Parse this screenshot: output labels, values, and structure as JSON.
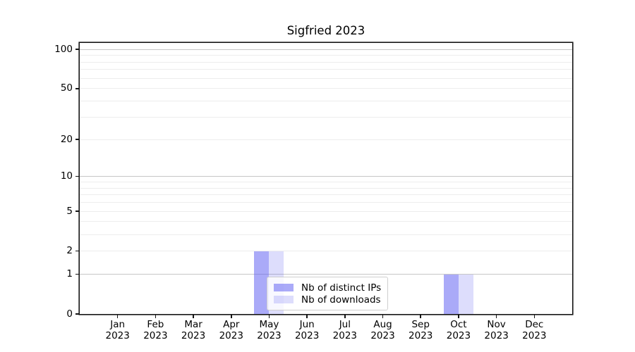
{
  "title": "Sigfried 2023",
  "chart_data": {
    "type": "bar",
    "title": "Sigfried 2023",
    "categories": [
      "Jan 2023",
      "Feb 2023",
      "Mar 2023",
      "Apr 2023",
      "May 2023",
      "Jun 2023",
      "Jul 2023",
      "Aug 2023",
      "Sep 2023",
      "Oct 2023",
      "Nov 2023",
      "Dec 2023"
    ],
    "series": [
      {
        "name": "Nb of distinct IPs",
        "color": "#5555f280",
        "values": [
          0,
          0,
          0,
          0,
          2,
          0,
          0,
          0,
          0,
          1,
          0,
          0
        ]
      },
      {
        "name": "Nb of downloads",
        "color": "#5555f233",
        "values": [
          0,
          0,
          0,
          0,
          2,
          0,
          0,
          0,
          0,
          1,
          0,
          0
        ]
      }
    ],
    "xlabel": "",
    "ylabel": "",
    "yticks": [
      0,
      1,
      2,
      5,
      10,
      20,
      50,
      100
    ],
    "yscale": "log(1+y)",
    "ylim": [
      0,
      112
    ],
    "grid": true,
    "major_grid_values": [
      1,
      10,
      100
    ],
    "minor_grid_values": [
      2,
      3,
      4,
      5,
      6,
      7,
      8,
      9,
      20,
      30,
      40,
      50,
      60,
      70,
      80,
      90
    ],
    "legend_position": "lower-center-left"
  },
  "colors": {
    "grid_major": "#c6c6c6",
    "grid_minor": "#ededed",
    "spine": "#151515",
    "background": "#ffffff",
    "text": "#000000"
  }
}
